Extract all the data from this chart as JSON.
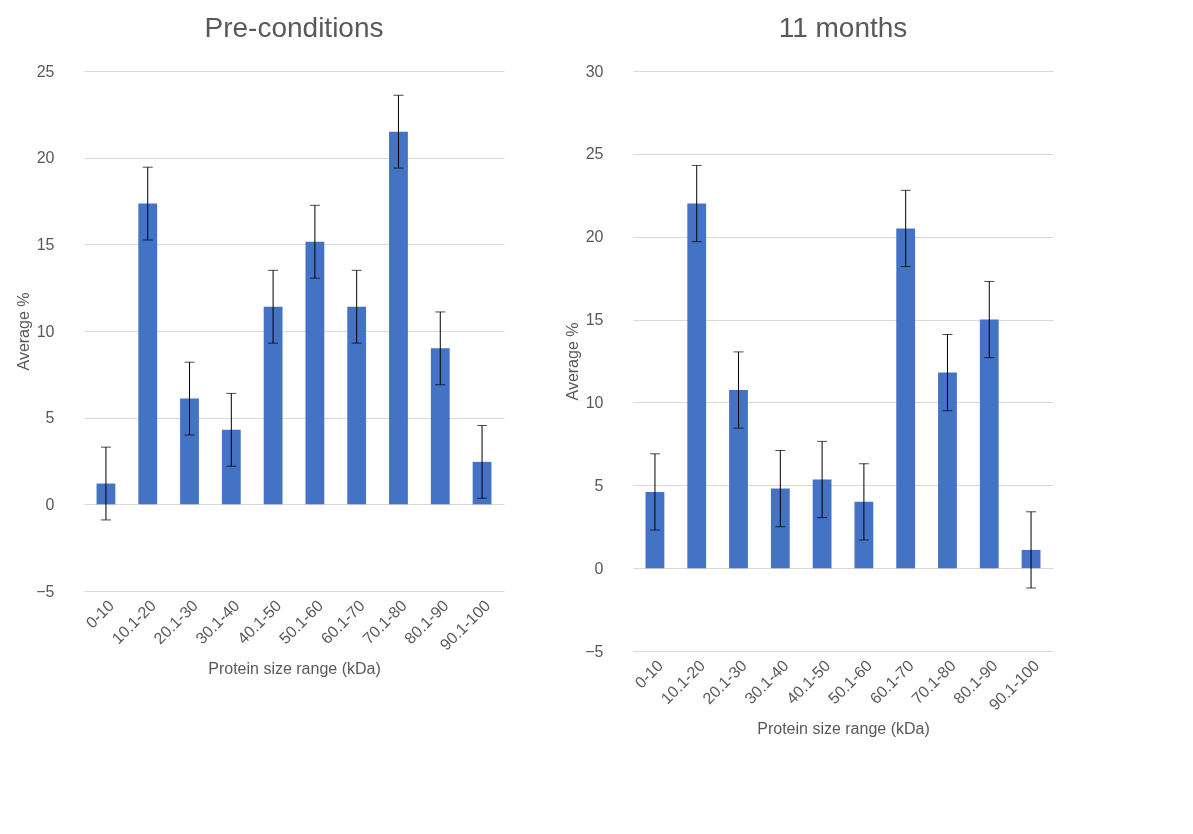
{
  "chart_data": [
    {
      "type": "bar",
      "title": "Pre-conditions",
      "xlabel": "Protein size range (kDa)",
      "ylabel": "Average %",
      "categories": [
        "0-10",
        "10.1-20",
        "20.1-30",
        "30.1-40",
        "40.1-50",
        "50.1-60",
        "60.1-70",
        "70.1-80",
        "80.1-90",
        "90.1-100"
      ],
      "series": [
        {
          "color": "#4472c4",
          "values": [
            1.2,
            17.35,
            6.1,
            4.3,
            11.4,
            15.15,
            11.4,
            21.5,
            9.0,
            2.45
          ],
          "errors": [
            2.1,
            2.1,
            2.1,
            2.1,
            2.1,
            2.1,
            2.1,
            2.1,
            2.1,
            2.1
          ]
        }
      ],
      "ylim": [
        -5,
        25
      ],
      "yticks": [
        -5,
        0,
        5,
        10,
        15,
        20,
        25
      ],
      "grid": "y"
    },
    {
      "type": "bar",
      "title": "11 months",
      "xlabel": "Protein size range (kDa)",
      "ylabel": "Average %",
      "categories": [
        "0-10",
        "10.1-20",
        "20.1-30",
        "30.1-40",
        "40.1-50",
        "50.1-60",
        "60.1-70",
        "70.1-80",
        "80.1-90",
        "90.1-100"
      ],
      "series": [
        {
          "color": "#4472c4",
          "values": [
            4.6,
            22.0,
            10.75,
            4.8,
            5.35,
            4.0,
            20.5,
            11.8,
            15.0,
            1.1
          ],
          "errors": [
            2.3,
            2.3,
            2.3,
            2.3,
            2.3,
            2.3,
            2.3,
            2.3,
            2.3,
            2.3
          ]
        }
      ],
      "ylim": [
        -5,
        30
      ],
      "yticks": [
        -5,
        0,
        5,
        10,
        15,
        20,
        25,
        30
      ],
      "grid": "y"
    }
  ]
}
